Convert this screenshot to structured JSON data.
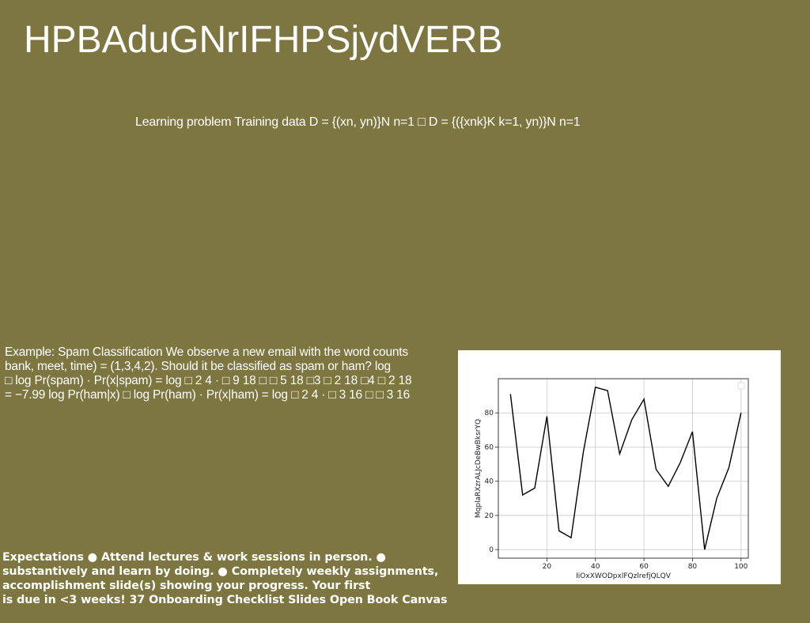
{
  "slide": {
    "title": "HPBAduGNrIFHPSjydVERB",
    "subtitle": "Learning problem Training data D = {(xn, yn)}N n=1 □ D = {({xnk}K k=1, yn)}N n=1",
    "example_lines": [
      "Example: Spam Classification We observe a new email with the word counts",
      "bank, meet, time) = (1,3,4,2). Should it be classified as spam or ham? log",
      "□ log Pr(spam) · Pr(x|spam) = log □ 2 4 · □ 9 18 □ □ 5 18 □3 □ 2 18 □4 □ 2 18",
      "= −7.99 log Pr(ham|x) □ log Pr(ham) · Pr(x|ham) = log □ 2 4 · □ 3 16 □ □ 3 16"
    ],
    "footer_lines": [
      "Expectations ● Attend lectures & work sessions in person. ●",
      "substantively and learn by doing. ● Completely weekly assignments,",
      "accomplishment slide(s) showing your progress. Your first",
      "is due in <3 weeks! 37 Onboarding Checklist Slides Open Book Canvas"
    ]
  },
  "chart_data": {
    "type": "line",
    "xlabel": "IiOxXWODpxlFQzlrefjQLQV",
    "ylabel": "MqplaRXzrALJcDeBwBksrYQ",
    "xlim": [
      0,
      103
    ],
    "ylim": [
      -5,
      100
    ],
    "xticks": [
      20,
      40,
      60,
      80,
      100
    ],
    "yticks": [
      0,
      20,
      40,
      60,
      80
    ],
    "grid": true,
    "legend": "top-right",
    "line_color": "#000000",
    "series": [
      {
        "x": [
          5,
          10,
          15,
          20,
          25,
          30,
          35,
          40,
          45,
          50,
          55,
          60,
          65,
          70,
          75,
          80,
          85,
          90,
          95,
          100
        ],
        "y": [
          91,
          32,
          36,
          78,
          11,
          7,
          57,
          95,
          93,
          56,
          76,
          88,
          47,
          37,
          51,
          69,
          0,
          30,
          48,
          80
        ]
      }
    ]
  }
}
